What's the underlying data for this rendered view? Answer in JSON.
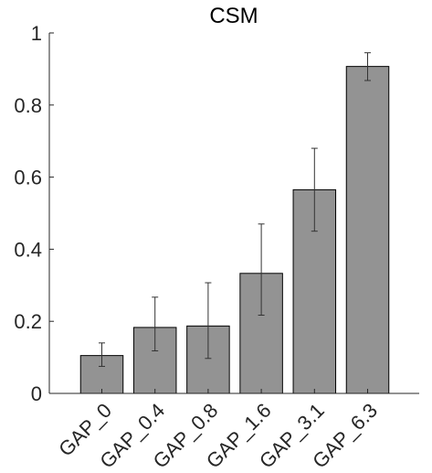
{
  "chart_data": {
    "type": "bar",
    "title": "CSM",
    "xlabel": "",
    "ylabel": "",
    "categories": [
      "GAP_0",
      "GAP_0.4",
      "GAP_0.8",
      "GAP_1.6",
      "GAP_3.1",
      "GAP_6.3"
    ],
    "values": [
      0.105,
      0.183,
      0.187,
      0.333,
      0.565,
      0.907
    ],
    "error_low": [
      0.075,
      0.118,
      0.097,
      0.217,
      0.45,
      0.868
    ],
    "error_high": [
      0.14,
      0.267,
      0.307,
      0.47,
      0.68,
      0.945
    ],
    "ylim": [
      0,
      1
    ],
    "yticks": [
      0,
      0.2,
      0.4,
      0.6,
      0.8,
      1
    ],
    "ytick_labels": [
      "0",
      "0.2",
      "0.4",
      "0.6",
      "0.8",
      "1"
    ],
    "grid": false,
    "bar_color": "#939393",
    "bar_edge_color": "#000000",
    "axis_color": "#262626"
  }
}
